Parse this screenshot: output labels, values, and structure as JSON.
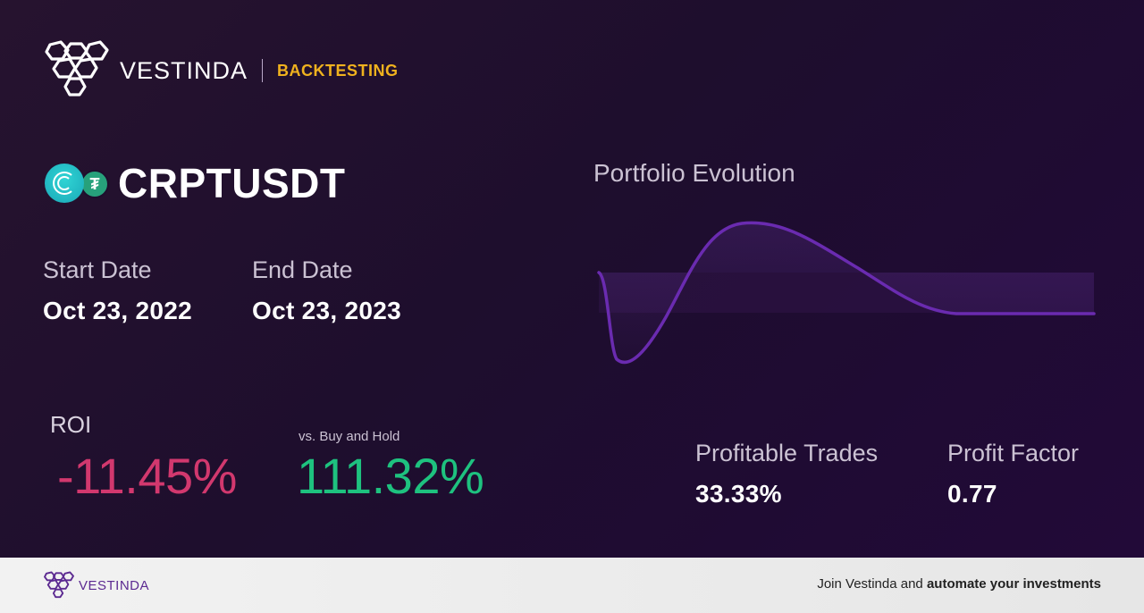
{
  "header": {
    "brand": "VESTINDA",
    "tag": "BACKTESTING",
    "tag_color": "#f0b21e"
  },
  "pair": {
    "name": "CRPTUSDT",
    "icons": [
      "crpt-coin-icon",
      "tether-coin-icon"
    ]
  },
  "dates": {
    "start_label": "Start Date",
    "start_value": "Oct 23, 2022",
    "end_label": "End Date",
    "end_value": "Oct 23, 2023"
  },
  "roi": {
    "label": "ROI",
    "value": "-11.45%",
    "color": "#d2386e",
    "bh_label": "vs. Buy and Hold",
    "bh_value": "111.32%",
    "bh_color": "#1ec27f"
  },
  "chart": {
    "title": "Portfolio Evolution",
    "line_color": "#6a2bb0"
  },
  "stats": {
    "trades_label": "Profitable Trades",
    "trades_value": "33.33%",
    "factor_label": "Profit Factor",
    "factor_value": "0.77"
  },
  "footer": {
    "brand": "VESTINDA",
    "cta_prefix": "Join Vestinda and",
    "cta_bold": "automate your investments"
  }
}
